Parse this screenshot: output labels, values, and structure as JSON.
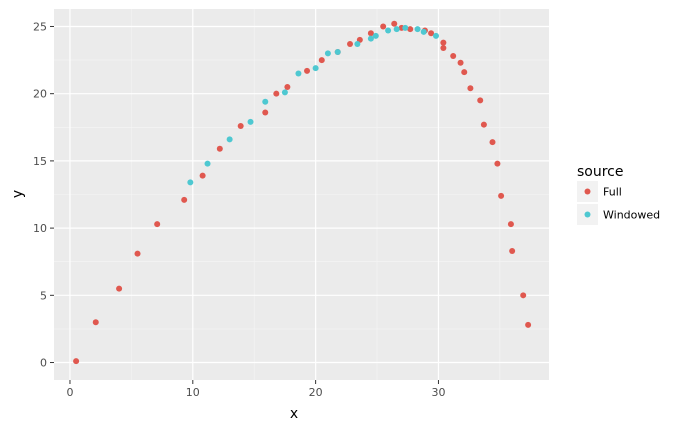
{
  "chart_data": {
    "type": "scatter",
    "title": "",
    "xlabel": "x",
    "ylabel": "y",
    "xlim": [
      -1.3,
      39.0
    ],
    "ylim": [
      -1.3,
      26.3
    ],
    "x_ticks": [
      0,
      10,
      20,
      30
    ],
    "y_ticks": [
      0,
      5,
      10,
      15,
      20,
      25
    ],
    "x_tick_labels": [
      "0",
      "10",
      "20",
      "30"
    ],
    "y_tick_labels": [
      "0",
      "5",
      "10",
      "15",
      "20",
      "25"
    ],
    "grid": true,
    "legend": {
      "title": "source",
      "position": "right"
    },
    "series": [
      {
        "name": "Full",
        "color": "#e0584f",
        "points": [
          [
            0.5,
            0.1
          ],
          [
            2.1,
            3.0
          ],
          [
            4.0,
            5.5
          ],
          [
            5.5,
            8.1
          ],
          [
            7.1,
            10.3
          ],
          [
            9.3,
            12.1
          ],
          [
            10.8,
            13.9
          ],
          [
            12.2,
            15.9
          ],
          [
            13.9,
            17.6
          ],
          [
            15.9,
            18.6
          ],
          [
            16.8,
            20.0
          ],
          [
            17.7,
            20.5
          ],
          [
            19.3,
            21.7
          ],
          [
            20.5,
            22.5
          ],
          [
            21.8,
            23.1
          ],
          [
            22.8,
            23.7
          ],
          [
            23.6,
            24.0
          ],
          [
            24.5,
            24.5
          ],
          [
            25.5,
            25.0
          ],
          [
            26.4,
            25.2
          ],
          [
            27.0,
            24.9
          ],
          [
            27.7,
            24.8
          ],
          [
            28.9,
            24.7
          ],
          [
            29.4,
            24.5
          ],
          [
            30.4,
            23.8
          ],
          [
            30.4,
            23.4
          ],
          [
            31.2,
            22.8
          ],
          [
            31.8,
            22.3
          ],
          [
            32.1,
            21.6
          ],
          [
            32.6,
            20.4
          ],
          [
            33.4,
            19.5
          ],
          [
            33.7,
            17.7
          ],
          [
            34.4,
            16.4
          ],
          [
            34.8,
            14.8
          ],
          [
            35.1,
            12.4
          ],
          [
            35.9,
            10.3
          ],
          [
            36.0,
            8.3
          ],
          [
            36.9,
            5.0
          ],
          [
            37.3,
            2.8
          ]
        ]
      },
      {
        "name": "Windowed",
        "color": "#4ec8d1",
        "points": [
          [
            9.8,
            13.4
          ],
          [
            11.2,
            14.8
          ],
          [
            13.0,
            16.6
          ],
          [
            14.7,
            17.9
          ],
          [
            15.9,
            19.4
          ],
          [
            17.5,
            20.1
          ],
          [
            18.6,
            21.5
          ],
          [
            20.0,
            21.9
          ],
          [
            21.0,
            23.0
          ],
          [
            21.8,
            23.1
          ],
          [
            23.4,
            23.7
          ],
          [
            24.5,
            24.1
          ],
          [
            24.9,
            24.3
          ],
          [
            25.9,
            24.7
          ],
          [
            26.6,
            24.8
          ],
          [
            27.3,
            24.9
          ],
          [
            28.3,
            24.8
          ],
          [
            28.8,
            24.6
          ],
          [
            29.8,
            24.3
          ]
        ]
      }
    ]
  }
}
